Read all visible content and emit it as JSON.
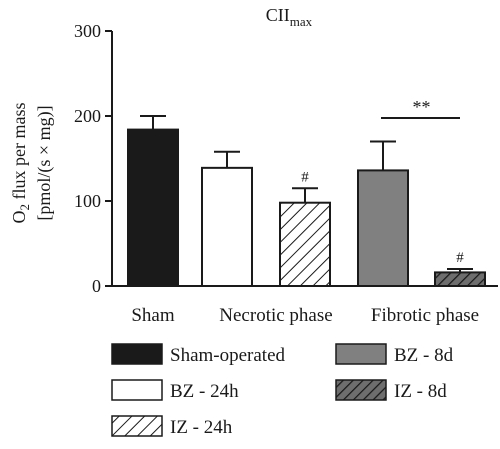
{
  "chart_data": {
    "type": "bar",
    "title": {
      "main": "CII",
      "subscript": "max"
    },
    "ylabel": {
      "line1_prefix": "O",
      "line1_sub": "2",
      "line1_suffix": " flux per mass",
      "line2": "[pmol/(s × mg)]"
    },
    "ylim": [
      0,
      300
    ],
    "yticks": [
      "0",
      "100",
      "200",
      "300"
    ],
    "ytick_values": [
      0,
      100,
      200,
      300
    ],
    "groups": [
      "Sham",
      "Necrotic phase",
      "Fibrotic phase"
    ],
    "series": [
      {
        "name": "Sham-operated",
        "group": 0,
        "value": 184,
        "error": 16,
        "fill": "#1a1a1a",
        "pattern": "solid",
        "annotation": ""
      },
      {
        "name": "BZ - 24h",
        "group": 1,
        "value": 139,
        "error": 19,
        "fill": "#ffffff",
        "pattern": "solid",
        "annotation": ""
      },
      {
        "name": "IZ - 24h",
        "group": 1,
        "value": 98,
        "error": 17,
        "fill": "#ffffff",
        "pattern": "hatch-light",
        "annotation": "#"
      },
      {
        "name": "BZ - 8d",
        "group": 2,
        "value": 136,
        "error": 34,
        "fill": "#808080",
        "pattern": "solid",
        "annotation": ""
      },
      {
        "name": "IZ - 8d",
        "group": 2,
        "value": 16,
        "error": 4,
        "fill": "#6e6e6e",
        "pattern": "hatch-dark",
        "annotation": "#"
      }
    ],
    "significance": {
      "from": 3,
      "to": 4,
      "label": "**"
    },
    "grid": false,
    "legend_position": "bottom"
  }
}
